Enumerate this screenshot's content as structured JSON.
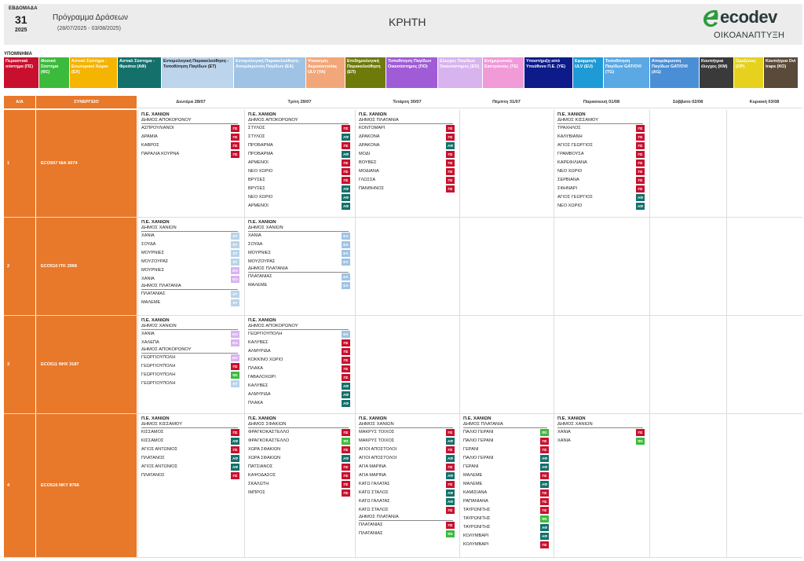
{
  "header": {
    "week_label": "ΕΒΔΟΜΑΔΑ",
    "week_number": "31",
    "year": "2025",
    "program_title": "Πρόγραμμα Δράσεων",
    "date_range": "(28/07/2025 - 03/08/2025)",
    "region": "ΚΡΗΤΗ",
    "logo_word": "ecodev",
    "logo_sub": "ΟΙΚΟΑΝΑΠΤΥΞΗ"
  },
  "legend_title": "ΥΠΟΜΝΗΜΑ",
  "legend": [
    {
      "label": "Περιαστικό σύστημα (ΠΣ)",
      "bg": "#c8102e",
      "fg": "#ffffff"
    },
    {
      "label": "Φυσικό Σύστημα (ΦΣ)",
      "bg": "#3cba3c",
      "fg": "#ffffff"
    },
    {
      "label": "Αστικό Σύστημα - Εσωτερικοί Χώροι (ΕΧ)",
      "bg": "#f4b400",
      "fg": "#ffffff"
    },
    {
      "label": "Αστικό Σύστημα - Φρεάτια (ΑΦ)",
      "bg": "#14706b",
      "fg": "#ffffff"
    },
    {
      "label": "Εντομολογική Παρακολούθηση - Τοποθέτηση Παγίδων (ΕΤ)",
      "bg": "#bcd4ec",
      "fg": "#222222"
    },
    {
      "label": "Εντομολογική Παρακολούθηση - Απομάκρυνση Παγίδων (ΕΑ)",
      "bg": "#9fc3e4",
      "fg": "#ffffff"
    },
    {
      "label": "Ψεκασμός Ακμαιοκτονίας ULV (YA)",
      "bg": "#f2a77a",
      "fg": "#ffffff"
    },
    {
      "label": "Επιδημιολογική Παρακολούθηση (ΕΠ)",
      "bg": "#6e7a0a",
      "fg": "#ffffff"
    },
    {
      "label": "Τοποθέτηση Παγίδων Οικοσύστημος (ΠΟ)",
      "bg": "#a05cd6",
      "fg": "#ffffff"
    },
    {
      "label": "Ελεγχος Παγίδων Οικοσύστημος (ΕΟ)",
      "bg": "#d8b4ee",
      "fg": "#ffffff"
    },
    {
      "label": "Ενημερωτικές Εκστρατείες (ΤΕ)",
      "bg": "#f09ad8",
      "fg": "#ffffff"
    },
    {
      "label": "Υποστήριξη από Υπεύθυνο Π.Ε. (ΥΕ)",
      "bg": "#0c1a8a",
      "fg": "#ffffff"
    },
    {
      "label": "Εφαρμογή ULV (EU)",
      "bg": "#1e9ad6",
      "fg": "#ffffff"
    },
    {
      "label": "Τοποθέτηση Παγίδων GAT/OVI (TG)",
      "bg": "#5aa8e4",
      "fg": "#ffffff"
    },
    {
      "label": "Απομάκρυνση Παγίδων GAT/OVI (AG)",
      "bg": "#4a8ed6",
      "fg": "#ffffff"
    },
    {
      "label": "Κουπήτρια έλεγχος (ΚΜ)",
      "bg": "#3a3a3a",
      "fg": "#ffffff"
    },
    {
      "label": "Ορυζώνες (OP)",
      "bg": "#e6d21e",
      "fg": "#ffffff"
    },
    {
      "label": "Κουπήτρια Ovi traps (ΚΟ)",
      "bg": "#5a4a3a",
      "fg": "#ffffff"
    }
  ],
  "table": {
    "col_aa": "Α/Α",
    "col_synergeio": "ΣΥΝΕΡΓΕΙΟ",
    "days": [
      "Δευτέρα 28/07",
      "Τρίτη 29/07",
      "Τετάρτη 30/07",
      "Πέμπτη 31/07",
      "Παρασκευή 01/08",
      "Σάββατο 02/08",
      "Κυριακή 03/08"
    ],
    "rows": [
      {
        "aa": "1",
        "synergeio": "ECO507   ΝΙΑ 6074",
        "days": [
          [
            {
              "pe": "Π.Ε. ΧΑΝΙΩΝ",
              "dimos": "ΔΗΜΟΣ ΑΠΟΚΟΡΩΝΟΥ",
              "items": [
                [
                  "ΑΣΠΡΟΥΛΙΑΝΟΙ",
                  "ΠΣ"
                ],
                [
                  "ΔΡΑΜΙΑ",
                  "ΠΣ"
                ],
                [
                  "ΚΑΒΡΟΣ",
                  "ΠΣ"
                ],
                [
                  "ΠΑΡΑΛΙΑ ΚΟΥΡΝΑ",
                  "ΠΣ"
                ]
              ]
            }
          ],
          [
            {
              "pe": "Π.Ε. ΧΑΝΙΩΝ",
              "dimos": "ΔΗΜΟΣ ΑΠΟΚΟΡΩΝΟΥ",
              "items": [
                [
                  "ΣΤΥΛΟΣ",
                  "ΠΣ"
                ],
                [
                  "ΣΤΥΛΟΣ",
                  "ΑΦ"
                ],
                [
                  "ΠΡΟΒΑΡΜΑ",
                  "ΠΣ"
                ],
                [
                  "ΠΡΟΒΑΡΜΑ",
                  "ΑΦ"
                ],
                [
                  "ΑΡΜΕΝΟΙ",
                  "ΠΣ"
                ],
                [
                  "ΝΕΟ ΧΩΡΙΟ",
                  "ΠΣ"
                ],
                [
                  "ΒΡΥΣΕΣ",
                  "ΠΣ"
                ],
                [
                  "ΒΡΥΣΕΣ",
                  "ΑΦ"
                ],
                [
                  "ΝΕΟ ΧΩΡΙΟ",
                  "ΑΦ"
                ],
                [
                  "ΑΡΜΕΝΟΙ",
                  "ΑΦ"
                ]
              ]
            }
          ],
          [
            {
              "pe": "Π.Ε. ΧΑΝΙΩΝ",
              "dimos": "ΔΗΜΟΣ ΠΛΑΤΑΝΙΑ",
              "items": [
                [
                  "ΚΟΝΤΟΜΑΡΙ",
                  "ΠΣ"
                ],
                [
                  "ΔΡΑΚΟΝΑ",
                  "ΠΣ"
                ],
                [
                  "ΔΡΑΚΟΝΑ",
                  "ΑΦ"
                ],
                [
                  "ΜΟΔΙ",
                  "ΠΣ"
                ],
                [
                  "ΒΟΥΒΕΣ",
                  "ΠΣ"
                ],
                [
                  "ΜΟΔΙΑΝΑ",
                  "ΠΣ"
                ],
                [
                  "ΓΛΩΣΣΑ",
                  "ΠΣ"
                ],
                [
                  "ΠΑΝΘΗΝΟΣ",
                  "ΠΣ"
                ]
              ]
            }
          ],
          [],
          [
            {
              "pe": "Π.Ε. ΧΑΝΙΩΝ",
              "dimos": "ΔΗΜΟΣ ΚΙΣΣΑΜΟΥ",
              "items": [
                [
                  "ΤΡΑΧΗΛΟΣ",
                  "ΠΣ"
                ],
                [
                  "ΚΑΛΥΒΙΑΝΗ",
                  "ΠΣ"
                ],
                [
                  "ΑΓΙΟΣ ΓΕΩΡΓΙΟΣ",
                  "ΠΣ"
                ],
                [
                  "ΓΡΑΜΒΟΥΣΑ",
                  "ΠΣ"
                ],
                [
                  "ΚΑΡΕΦΙΛΙΑΝΑ",
                  "ΠΣ"
                ],
                [
                  "ΝΕΟ ΧΩΡΙΟ",
                  "ΠΣ"
                ],
                [
                  "ΣΕΡΒΙΑΝΑ",
                  "ΠΣ"
                ],
                [
                  "ΣΦΗΝΑΡΙ",
                  "ΠΣ"
                ],
                [
                  "ΑΓΙΟΣ ΓΕΩΡΓΙΟΣ",
                  "ΑΦ"
                ],
                [
                  "ΝΕΟ ΧΩΡΙΟ",
                  "ΑΦ"
                ]
              ]
            }
          ],
          [],
          []
        ]
      },
      {
        "aa": "2",
        "synergeio": "ECO510   ΙΤΚ 2968",
        "days": [
          [
            {
              "pe": "Π.Ε. ΧΑΝΙΩΝ",
              "dimos": "ΔΗΜΟΣ ΧΑΝΙΩΝ",
              "items": [
                [
                  "ΧΑΝΙΑ",
                  "ΕΤ"
                ],
                [
                  "ΣΟΥΔΑ",
                  "ΕΤ"
                ],
                [
                  "ΜΟΥΡΝΙΕΣ",
                  "ΕΤ"
                ],
                [
                  "ΜΟΥΖΟΥΡΑΣ",
                  "ΕΤ"
                ],
                [
                  "ΜΟΥΡΝΙΕΣ",
                  "ΕΟ"
                ],
                [
                  "ΧΑΝΙΑ",
                  "ΕΟ"
                ]
              ]
            },
            {
              "pe": "",
              "dimos": "ΔΗΜΟΣ ΠΛΑΤΑΝΙΑ",
              "items": [
                [
                  "ΠΛΑΤΑΝΙΑΣ",
                  "ΕΤ"
                ],
                [
                  "ΜΑΛΕΜΕ",
                  "ΕΤ"
                ]
              ]
            }
          ],
          [
            {
              "pe": "Π.Ε. ΧΑΝΙΩΝ",
              "dimos": "ΔΗΜΟΣ ΧΑΝΙΩΝ",
              "items": [
                [
                  "ΧΑΝΙΑ",
                  "ΕΑ"
                ],
                [
                  "ΣΟΥΔΑ",
                  "ΕΑ"
                ],
                [
                  "ΜΟΥΡΝΙΕΣ",
                  "ΕΑ"
                ],
                [
                  "ΜΟΥΖΟΥΡΑΣ",
                  "ΕΑ"
                ]
              ]
            },
            {
              "pe": "",
              "dimos": "ΔΗΜΟΣ ΠΛΑΤΑΝΙΑ",
              "items": [
                [
                  "ΠΛΑΤΑΝΙΑΣ",
                  "ΕΑ"
                ],
                [
                  "ΜΑΛΕΜΕ",
                  "ΕΑ"
                ]
              ]
            }
          ],
          [],
          [],
          [],
          [],
          []
        ]
      },
      {
        "aa": "3",
        "synergeio": "ECO511   ΝΗΧ 3187",
        "days": [
          [
            {
              "pe": "Π.Ε. ΧΑΝΙΩΝ",
              "dimos": "ΔΗΜΟΣ ΧΑΝΙΩΝ",
              "items": [
                [
                  "ΧΑΝΙΑ",
                  "ΕΟ"
                ],
                [
                  "ΧΑΛΕΠΑ",
                  "ΕΟ"
                ]
              ]
            },
            {
              "pe": "",
              "dimos": "ΔΗΜΟΣ ΑΠΟΚΟΡΩΝΟΥ",
              "items": [
                [
                  "ΓΕΩΡΓΙΟΥΠΟΛΗ",
                  "ΕΟ"
                ],
                [
                  "ΓΕΩΡΓΙΟΥΠΟΛΗ",
                  "ΠΣ"
                ],
                [
                  "ΓΕΩΡΓΙΟΥΠΟΛΗ",
                  "ΦΣ"
                ],
                [
                  "ΓΕΩΡΓΙΟΥΠΟΛΗ",
                  "ΕΤ"
                ]
              ]
            }
          ],
          [
            {
              "pe": "Π.Ε. ΧΑΝΙΩΝ",
              "dimos": "ΔΗΜΟΣ ΑΠΟΚΟΡΩΝΟΥ",
              "items": [
                [
                  "ΓΕΩΡΓΙΟΥΠΟΛΗ",
                  "ΕΑ"
                ],
                [
                  "ΚΑΛΥΒΕΣ",
                  "ΠΣ"
                ],
                [
                  "ΑΛΜΥΡΙΔΑ",
                  "ΠΣ"
                ],
                [
                  "ΚΟΚΚΙΝΟ ΧΩΡΙΟ",
                  "ΠΣ"
                ],
                [
                  "ΠΛΑΚΑ",
                  "ΠΣ"
                ],
                [
                  "ΓΑΒΑΛΟΧΩΡΙ",
                  "ΠΣ"
                ],
                [
                  "ΚΑΛΥΒΕΣ",
                  "ΑΦ"
                ],
                [
                  "ΑΛΜΥΡΙΔΑ",
                  "ΑΦ"
                ],
                [
                  "ΠΛΑΚΑ",
                  "ΑΦ"
                ]
              ]
            }
          ],
          [],
          [],
          [],
          [],
          []
        ]
      },
      {
        "aa": "4",
        "synergeio": "ECO516   ΝΚΥ 8766",
        "days": [
          [
            {
              "pe": "Π.Ε. ΧΑΝΙΩΝ",
              "dimos": "ΔΗΜΟΣ ΚΙΣΣΑΜΟΥ",
              "items": [
                [
                  "ΚΙΣΣΑΜΟΣ",
                  "ΠΣ"
                ],
                [
                  "ΚΙΣΣΑΜΟΣ",
                  "ΑΦ"
                ],
                [
                  "ΑΓΙΟΣ ΑΝΤΩΝΙΟΣ",
                  "ΠΣ"
                ],
                [
                  "ΠΛΑΤΑΝΟΣ",
                  "ΑΦ"
                ],
                [
                  "ΑΓΙΟΣ ΑΝΤΩΝΙΟΣ",
                  "ΑΦ"
                ],
                [
                  "ΠΛΑΤΑΝΟΣ",
                  "ΠΣ"
                ]
              ]
            }
          ],
          [
            {
              "pe": "Π.Ε. ΧΑΝΙΩΝ",
              "dimos": "ΔΗΜΟΣ ΣΦΑΚΙΩΝ",
              "items": [
                [
                  "ΦΡΑΓΚΟΚΑΣΤΕΛΛΟ",
                  "ΠΣ"
                ],
                [
                  "ΦΡΑΓΚΟΚΑΣΤΕΛΛΟ",
                  "ΦΣ"
                ],
                [
                  "ΧΩΡΑ ΣΦΑΚΙΩΝ",
                  "ΠΣ"
                ],
                [
                  "ΧΩΡΑ ΣΦΑΚΙΩΝ",
                  "ΑΦ"
                ],
                [
                  "ΠΑΤΣΙΑΝΟΣ",
                  "ΠΣ"
                ],
                [
                  "ΚΑΨΟΔΑΣΟΣ",
                  "ΠΣ"
                ],
                [
                  "ΣΚΑΛΩΤΗ",
                  "ΠΣ"
                ],
                [
                  "ΙΜΠΡΟΣ",
                  "ΠΣ"
                ]
              ]
            }
          ],
          [
            {
              "pe": "Π.Ε. ΧΑΝΙΩΝ",
              "dimos": "ΔΗΜΟΣ ΧΑΝΙΩΝ",
              "items": [
                [
                  "ΜΑΚΡΥΣ ΤΟΙΧΟΣ",
                  "ΠΣ"
                ],
                [
                  "ΜΑΚΡΥΣ ΤΟΙΧΟΣ",
                  "ΑΦ"
                ],
                [
                  "ΑΓΙΟΙ ΑΠΟΣΤΟΛΟΙ",
                  "ΠΣ"
                ],
                [
                  "ΑΓΙΟΙ ΑΠΟΣΤΟΛΟΙ",
                  "ΑΦ"
                ],
                [
                  "ΑΓΙΑ ΜΑΡΙΝΑ",
                  "ΠΣ"
                ],
                [
                  "ΑΓΙΑ ΜΑΡΙΝΑ",
                  "ΑΦ"
                ],
                [
                  "ΚΑΤΩ ΓΑΛΑΤΑΣ",
                  "ΠΣ"
                ],
                [
                  "ΚΑΤΩ ΣΤΑΛΟΣ",
                  "ΑΦ"
                ],
                [
                  "ΚΑΤΩ ΓΑΛΑΤΑΣ",
                  "ΑΦ"
                ],
                [
                  "ΚΑΤΩ ΣΤΑΛΟΣ",
                  "ΠΣ"
                ]
              ]
            },
            {
              "pe": "",
              "dimos": "ΔΗΜΟΣ ΠΛΑΤΑΝΙΑ",
              "items": [
                [
                  "ΠΛΑΤΑΝΙΑΣ",
                  "ΠΣ"
                ],
                [
                  "ΠΛΑΤΑΝΙΑΣ",
                  "ΦΣ"
                ]
              ]
            }
          ],
          [
            {
              "pe": "Π.Ε. ΧΑΝΙΩΝ",
              "dimos": "ΔΗΜΟΣ ΠΛΑΤΑΝΙΑ",
              "items": [
                [
                  "ΠΑΛΙΟ ΓΕΡΑΝΙ",
                  "ΦΣ"
                ],
                [
                  "ΠΑΛΙΟ ΓΕΡΑΝΙ",
                  "ΠΣ"
                ],
                [
                  "ΓΕΡΑΝΙ",
                  "ΠΣ"
                ],
                [
                  "ΠΑΛΙΟ ΓΕΡΑΝΙ",
                  "ΑΦ"
                ],
                [
                  "ΓΕΡΑΝΙ",
                  "ΑΦ"
                ],
                [
                  "ΜΑΛΕΜΕ",
                  "ΠΣ"
                ],
                [
                  "ΜΑΛΕΜΕ",
                  "ΑΦ"
                ],
                [
                  "ΚΑΜΙΣΙΑΝΑ",
                  "ΠΣ"
                ],
                [
                  "ΡΑΠΑΝΙΑΝΑ",
                  "ΠΣ"
                ],
                [
                  "ΤΑΥΡΩΝΙΤΗΣ",
                  "ΠΣ"
                ],
                [
                  "ΤΑΥΡΩΝΙΤΗΣ",
                  "ΦΣ"
                ],
                [
                  "ΤΑΥΡΩΝΙΤΗΣ",
                  "ΑΦ"
                ],
                [
                  "ΚΟΛΥΜΒΑΡΙ",
                  "ΑΦ"
                ],
                [
                  "ΚΟΛΥΜΒΑΡΙ",
                  "ΠΣ"
                ]
              ]
            }
          ],
          [
            {
              "pe": "Π.Ε. ΧΑΝΙΩΝ",
              "dimos": "ΔΗΜΟΣ ΧΑΝΙΩΝ",
              "items": [
                [
                  "ΧΑΝΙΑ",
                  "ΠΣ"
                ],
                [
                  "ΧΑΝΙΑ",
                  "ΦΣ"
                ]
              ]
            }
          ],
          [],
          []
        ]
      }
    ]
  }
}
